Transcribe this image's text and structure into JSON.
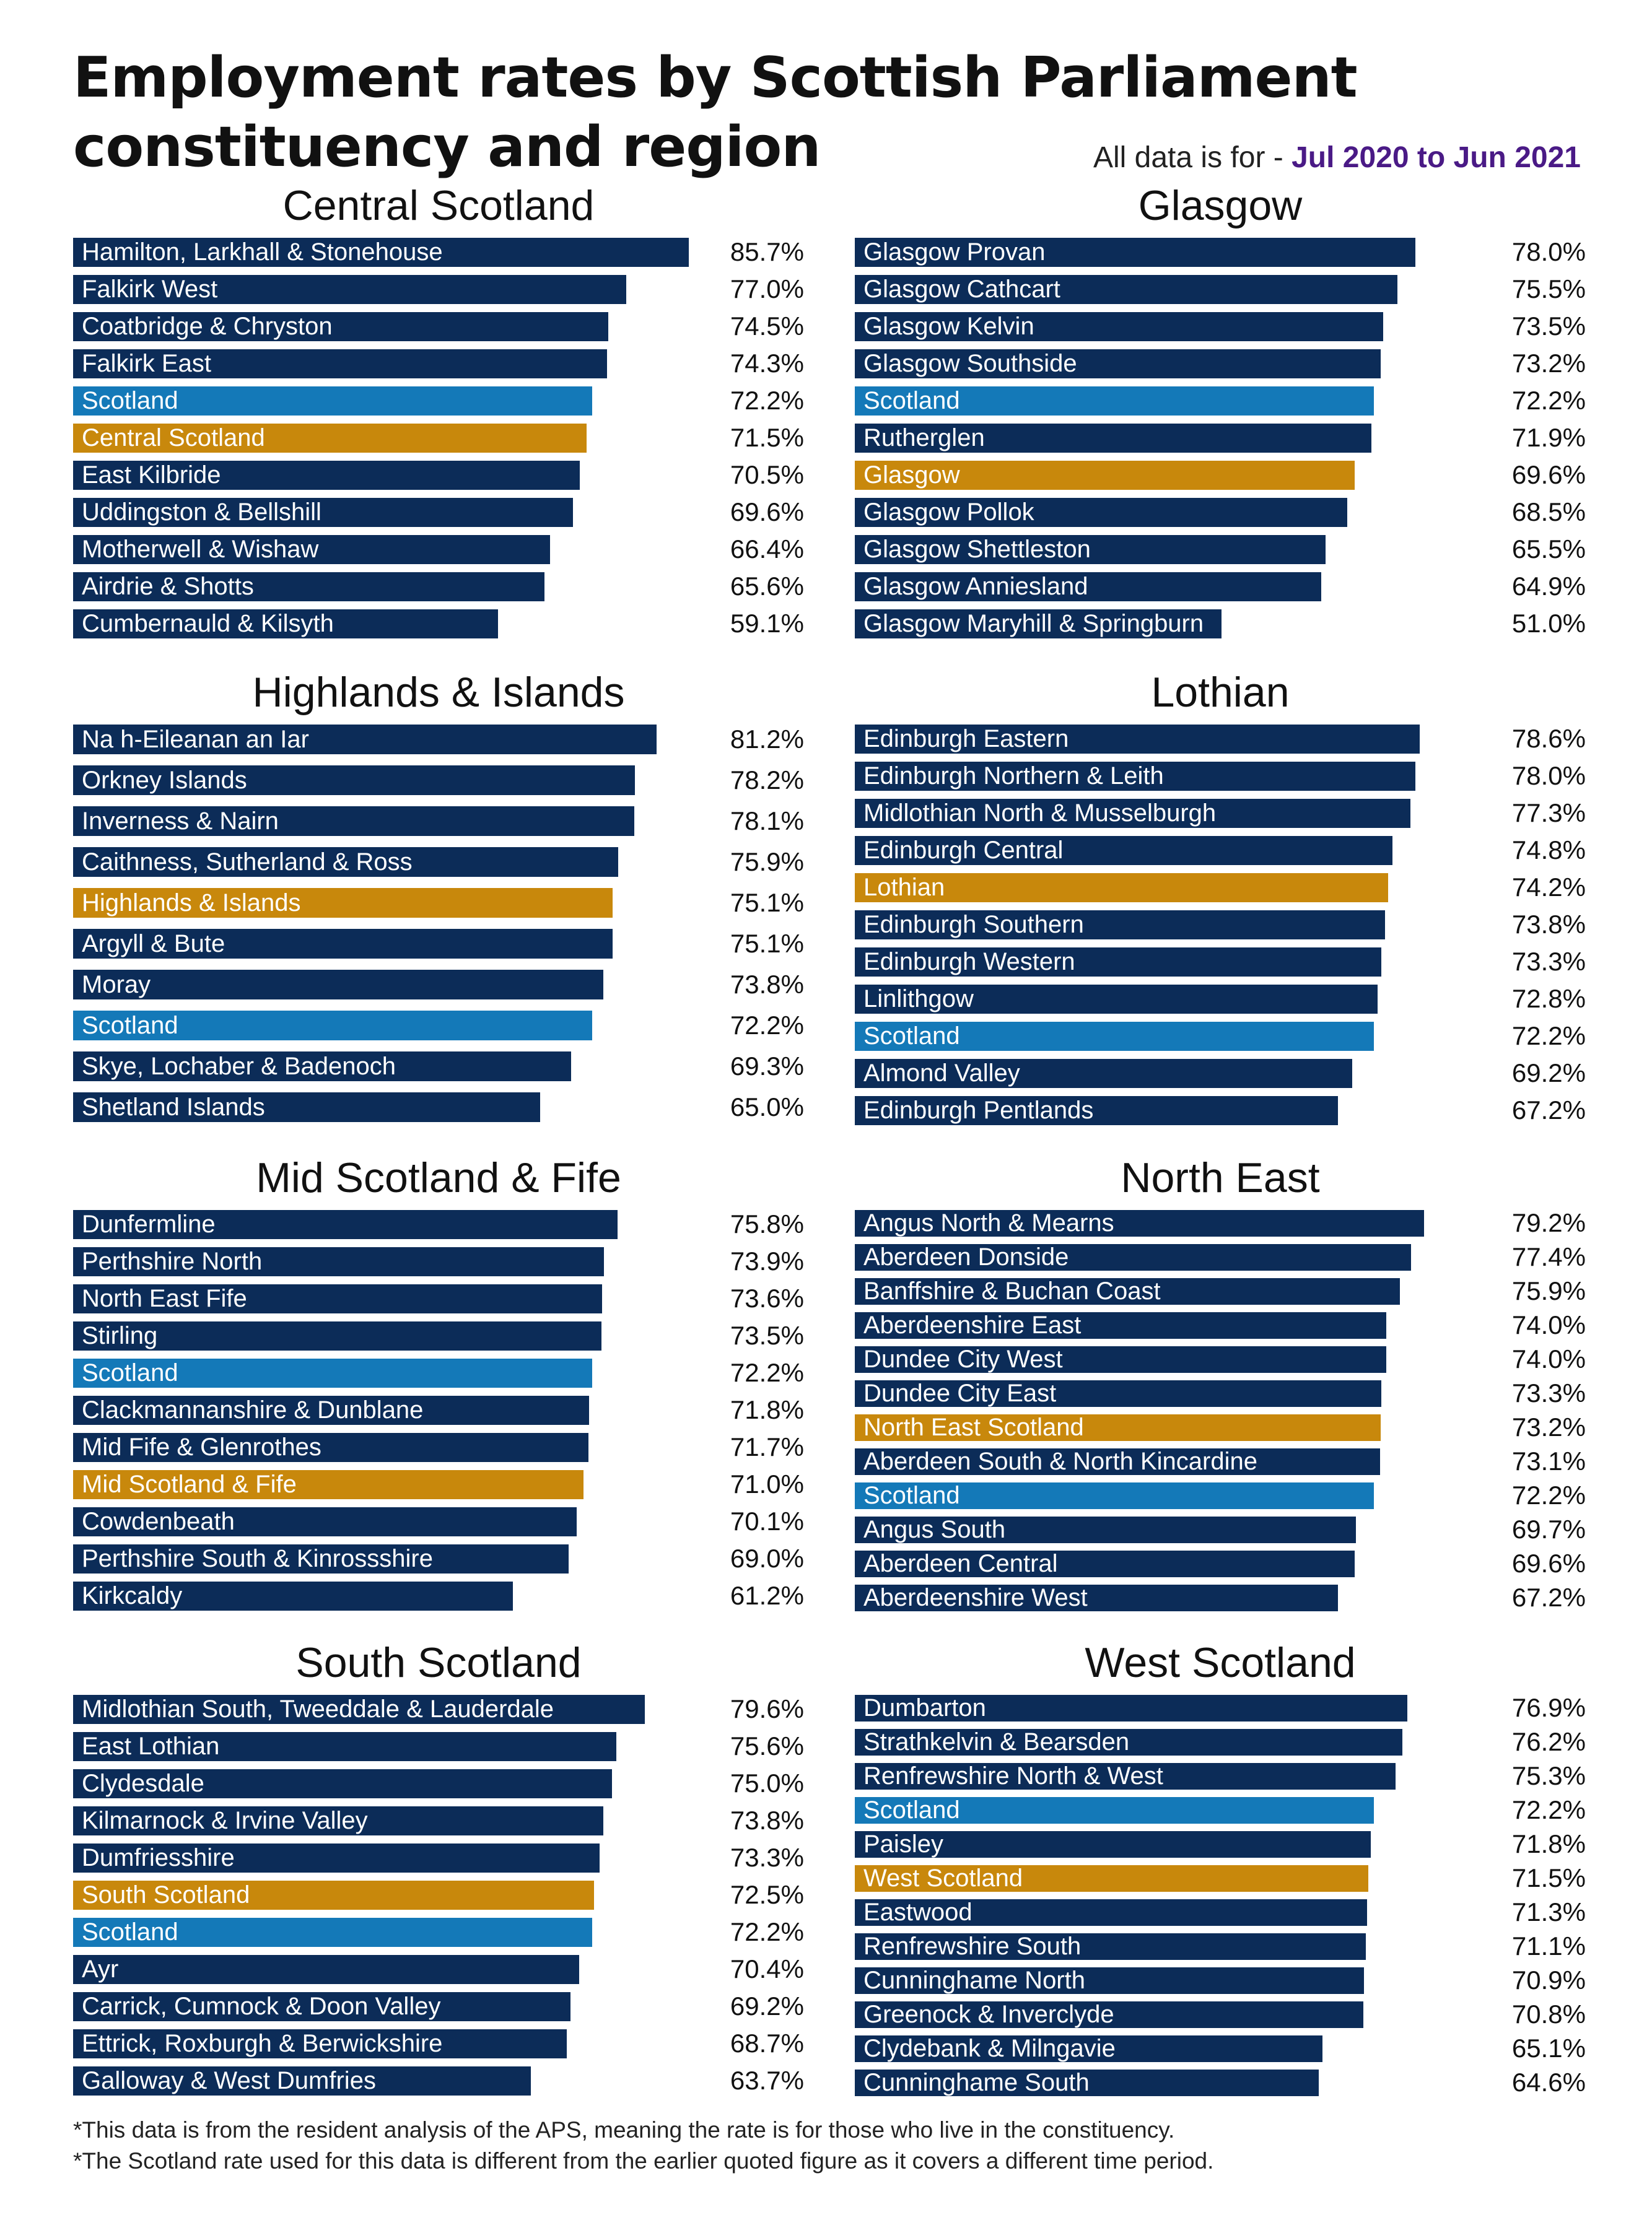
{
  "title": "Employment rates by Scottish Parliament constituency and region",
  "period_prefix": "All data is for - ",
  "period_value": "Jul 2020 to Jun 2021",
  "colors": {
    "constituency": "#0c2c58",
    "scotland": "#1479b8",
    "region": "#c8880c",
    "period_highlight": "#4a1a86"
  },
  "footnotes": [
    "*This data is from the resident analysis of the APS, meaning the rate is for those who live in the constituency.",
    "*The Scotland rate used for this data is different from the earlier quoted figure as it covers a different time period."
  ],
  "chart_data": [
    {
      "type": "bar",
      "orientation": "horizontal",
      "title": "Central Scotland",
      "unit": "%",
      "xlim": [
        0,
        90
      ],
      "categories": [
        "Hamilton, Larkhall & Stonehouse",
        "Falkirk West",
        "Coatbridge & Chryston",
        "Falkirk East",
        "Scotland",
        "Central Scotland",
        "East Kilbride",
        "Uddingston & Bellshill",
        "Motherwell & Wishaw",
        "Airdrie & Shotts",
        "Cumbernauld & Kilsyth"
      ],
      "values": [
        85.7,
        77.0,
        74.5,
        74.3,
        72.2,
        71.5,
        70.5,
        69.6,
        66.4,
        65.6,
        59.1
      ],
      "labels": [
        "85.7%",
        "77.0%",
        "74.5%",
        "74.3%",
        "72.2%",
        "71.5%",
        "70.5%",
        "69.6%",
        "66.4%",
        "65.6%",
        "59.1%"
      ],
      "kinds": [
        "c",
        "c",
        "c",
        "c",
        "s",
        "r",
        "c",
        "c",
        "c",
        "c",
        "c"
      ]
    },
    {
      "type": "bar",
      "orientation": "horizontal",
      "title": "Glasgow",
      "unit": "%",
      "xlim": [
        0,
        90
      ],
      "categories": [
        "Glasgow Provan",
        "Glasgow Cathcart",
        "Glasgow Kelvin",
        "Glasgow Southside",
        "Scotland",
        "Rutherglen",
        "Glasgow",
        "Glasgow Pollok",
        "Glasgow Shettleston",
        "Glasgow Anniesland",
        "Glasgow Maryhill & Springburn"
      ],
      "values": [
        78.0,
        75.5,
        73.5,
        73.2,
        72.2,
        71.9,
        69.6,
        68.5,
        65.5,
        64.9,
        51.0
      ],
      "labels": [
        "78.0%",
        "75.5%",
        "73.5%",
        "73.2%",
        "72.2%",
        "71.9%",
        "69.6%",
        "68.5%",
        "65.5%",
        "64.9%",
        "51.0%"
      ],
      "kinds": [
        "c",
        "c",
        "c",
        "c",
        "s",
        "c",
        "r",
        "c",
        "c",
        "c",
        "c"
      ]
    },
    {
      "type": "bar",
      "orientation": "horizontal",
      "title": "Highlands & Islands",
      "unit": "%",
      "xlim": [
        0,
        90
      ],
      "categories": [
        "Na h-Eileanan an Iar",
        "Orkney Islands",
        "Inverness & Nairn",
        "Caithness, Sutherland & Ross",
        "Highlands & Islands",
        "Argyll & Bute",
        "Moray",
        "Scotland",
        "Skye, Lochaber & Badenoch",
        "Shetland Islands"
      ],
      "values": [
        81.2,
        78.2,
        78.1,
        75.9,
        75.1,
        75.1,
        73.8,
        72.2,
        69.3,
        65.0
      ],
      "labels": [
        "81.2%",
        "78.2%",
        "78.1%",
        "75.9%",
        "75.1%",
        "75.1%",
        "73.8%",
        "72.2%",
        "69.3%",
        "65.0%"
      ],
      "kinds": [
        "c",
        "c",
        "c",
        "c",
        "r",
        "c",
        "c",
        "s",
        "c",
        "c"
      ]
    },
    {
      "type": "bar",
      "orientation": "horizontal",
      "title": "Lothian",
      "unit": "%",
      "xlim": [
        0,
        90
      ],
      "categories": [
        "Edinburgh Eastern",
        "Edinburgh Northern & Leith",
        "Midlothian North & Musselburgh",
        "Edinburgh Central",
        "Lothian",
        "Edinburgh Southern",
        "Edinburgh Western",
        "Linlithgow",
        "Scotland",
        "Almond Valley",
        "Edinburgh Pentlands"
      ],
      "values": [
        78.6,
        78.0,
        77.3,
        74.8,
        74.2,
        73.8,
        73.3,
        72.8,
        72.2,
        69.2,
        67.2
      ],
      "labels": [
        "78.6%",
        "78.0%",
        "77.3%",
        "74.8%",
        "74.2%",
        "73.8%",
        "73.3%",
        "72.8%",
        "72.2%",
        "69.2%",
        "67.2%"
      ],
      "kinds": [
        "c",
        "c",
        "c",
        "c",
        "r",
        "c",
        "c",
        "c",
        "s",
        "c",
        "c"
      ]
    },
    {
      "type": "bar",
      "orientation": "horizontal",
      "title": "Mid Scotland & Fife",
      "unit": "%",
      "xlim": [
        0,
        90
      ],
      "categories": [
        "Dunfermline",
        "Perthshire North",
        "North East Fife",
        "Stirling",
        "Scotland",
        "Clackmannanshire & Dunblane",
        "Mid Fife & Glenrothes",
        "Mid Scotland & Fife",
        "Cowdenbeath",
        "Perthshire South & Kinrossshire",
        "Kirkcaldy"
      ],
      "values": [
        75.8,
        73.9,
        73.6,
        73.5,
        72.2,
        71.8,
        71.7,
        71.0,
        70.1,
        69.0,
        61.2
      ],
      "labels": [
        "75.8%",
        "73.9%",
        "73.6%",
        "73.5%",
        "72.2%",
        "71.8%",
        "71.7%",
        "71.0%",
        "70.1%",
        "69.0%",
        "61.2%"
      ],
      "kinds": [
        "c",
        "c",
        "c",
        "c",
        "s",
        "c",
        "c",
        "r",
        "c",
        "c",
        "c"
      ]
    },
    {
      "type": "bar",
      "orientation": "horizontal",
      "title": "North East",
      "unit": "%",
      "xlim": [
        0,
        90
      ],
      "categories": [
        "Angus North & Mearns",
        "Aberdeen Donside",
        "Banffshire & Buchan Coast",
        "Aberdeenshire East",
        "Dundee City West",
        "Dundee City East",
        "North East Scotland",
        "Aberdeen South & North Kincardine",
        "Scotland",
        "Angus South",
        "Aberdeen Central",
        "Aberdeenshire West"
      ],
      "values": [
        79.2,
        77.4,
        75.9,
        74.0,
        74.0,
        73.3,
        73.2,
        73.1,
        72.2,
        69.7,
        69.6,
        67.2
      ],
      "labels": [
        "79.2%",
        "77.4%",
        "75.9%",
        "74.0%",
        "74.0%",
        "73.3%",
        "73.2%",
        "73.1%",
        "72.2%",
        "69.7%",
        "69.6%",
        "67.2%"
      ],
      "kinds": [
        "c",
        "c",
        "c",
        "c",
        "c",
        "c",
        "r",
        "c",
        "s",
        "c",
        "c",
        "c"
      ]
    },
    {
      "type": "bar",
      "orientation": "horizontal",
      "title": "South Scotland",
      "unit": "%",
      "xlim": [
        0,
        90
      ],
      "categories": [
        "Midlothian South, Tweeddale & Lauderdale",
        "East Lothian",
        "Clydesdale",
        "Kilmarnock & Irvine Valley",
        "Dumfriesshire",
        "South Scotland",
        "Scotland",
        "Ayr",
        "Carrick, Cumnock & Doon Valley",
        "Ettrick, Roxburgh & Berwickshire",
        "Galloway & West Dumfries"
      ],
      "values": [
        79.6,
        75.6,
        75.0,
        73.8,
        73.3,
        72.5,
        72.2,
        70.4,
        69.2,
        68.7,
        63.7
      ],
      "labels": [
        "79.6%",
        "75.6%",
        "75.0%",
        "73.8%",
        "73.3%",
        "72.5%",
        "72.2%",
        "70.4%",
        "69.2%",
        "68.7%",
        "63.7%"
      ],
      "kinds": [
        "c",
        "c",
        "c",
        "c",
        "c",
        "r",
        "s",
        "c",
        "c",
        "c",
        "c"
      ]
    },
    {
      "type": "bar",
      "orientation": "horizontal",
      "title": "West Scotland",
      "unit": "%",
      "xlim": [
        0,
        90
      ],
      "categories": [
        "Dumbarton",
        "Strathkelvin & Bearsden",
        "Renfrewshire North & West",
        "Scotland",
        "Paisley",
        "West Scotland",
        "Eastwood",
        "Renfrewshire South",
        "Cunninghame North",
        "Greenock & Inverclyde",
        "Clydebank & Milngavie",
        "Cunninghame South"
      ],
      "values": [
        76.9,
        76.2,
        75.3,
        72.2,
        71.8,
        71.5,
        71.3,
        71.1,
        70.9,
        70.8,
        65.1,
        64.6
      ],
      "labels": [
        "76.9%",
        "76.2%",
        "75.3%",
        "72.2%",
        "71.8%",
        "71.5%",
        "71.3%",
        "71.1%",
        "70.9%",
        "70.8%",
        "65.1%",
        "64.6%"
      ],
      "kinds": [
        "c",
        "c",
        "c",
        "s",
        "c",
        "r",
        "c",
        "c",
        "c",
        "c",
        "c",
        "c"
      ]
    }
  ]
}
